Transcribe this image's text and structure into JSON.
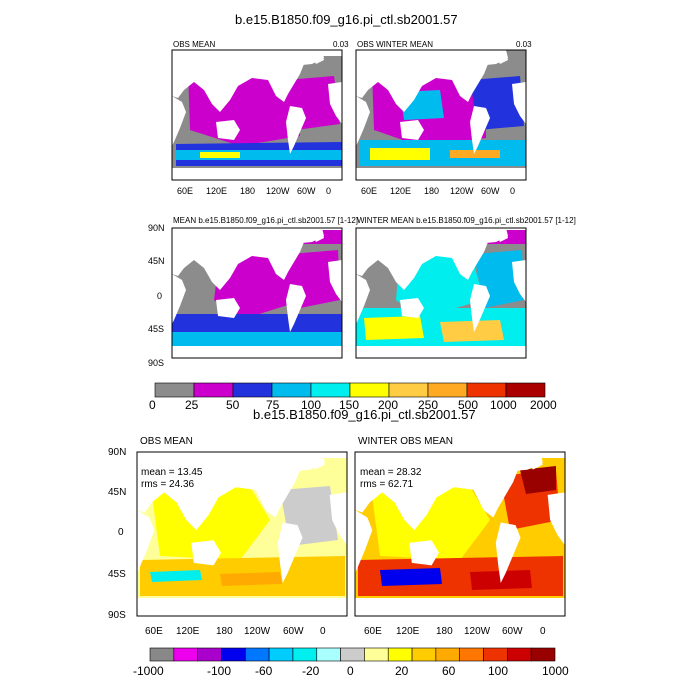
{
  "title_top": "b.e15.B1850.f09_g16.pi_ctl.sb2001.57",
  "title_bottom": "b.e15.B1850.f09_g16.pi_ctl.sb2001.57",
  "panels": {
    "obs_mean": {
      "label": "OBS MEAN",
      "corner": "0.03"
    },
    "obs_winter_mean": {
      "label": "OBS WINTER MEAN",
      "corner": "0.03"
    },
    "model_mean": {
      "label": "MEAN b.e15.B1850.f09_g16.pi_ctl.sb2001.57 [1-12]"
    },
    "model_winter_mean": {
      "label": "WINTER MEAN b.e15.B1850.f09_g16.pi_ctl.sb2001.57 [1-12]"
    },
    "diff_mean": {
      "label": "OBS MEAN",
      "stat1": "mean = 13.45",
      "stat2": "rms = 24.36"
    },
    "diff_winter": {
      "label": "WINTER OBS MEAN",
      "stat1": "mean = 28.32",
      "stat2": "rms = 62.71"
    }
  },
  "axes": {
    "lon_ticks": [
      "60E",
      "120E",
      "180",
      "120W",
      "60W",
      "0"
    ],
    "lat_ticks": [
      "90N",
      "45N",
      "0",
      "45S",
      "90S"
    ]
  },
  "colorbar1": {
    "labels": [
      "0",
      "25",
      "50",
      "75",
      "100",
      "150",
      "200",
      "250",
      "500",
      "1000",
      "2000"
    ],
    "colors": [
      "#8c8c8c",
      "#cc00cc",
      "#2233dd",
      "#00bbee",
      "#00eeee",
      "#ffff00",
      "#ffcc44",
      "#ffaa22",
      "#ee3300",
      "#aa0000"
    ]
  },
  "colorbar2": {
    "labels": [
      "-1000",
      "-100",
      "-60",
      "-20",
      "0",
      "20",
      "60",
      "100",
      "1000"
    ],
    "colors": [
      "#888888",
      "#ee00ee",
      "#aa00cc",
      "#0000ee",
      "#0077ff",
      "#00ccff",
      "#00eeee",
      "#aaffff",
      "#cccccc",
      "#ffff99",
      "#ffff00",
      "#ffcc00",
      "#ffaa00",
      "#ff7700",
      "#ee3300",
      "#cc0000",
      "#990000"
    ]
  }
}
